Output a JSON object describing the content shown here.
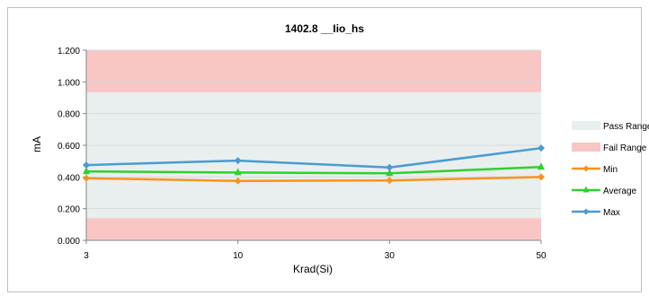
{
  "chart_data": {
    "type": "line",
    "title": "1402.8 __Iio_hs",
    "xlabel": "Krad(Si)",
    "ylabel": "mA",
    "categories": [
      "3",
      "10",
      "30",
      "50"
    ],
    "ylim": [
      0,
      1.2
    ],
    "yticks": [
      "0.000",
      "0.200",
      "0.400",
      "0.600",
      "0.800",
      "1.000",
      "1.200"
    ],
    "grid": true,
    "legend_position": "right",
    "bands": [
      {
        "name": "Pass Range",
        "from": 0.14,
        "to": 0.935,
        "color": "#e9eeee"
      },
      {
        "name": "Fail Range",
        "from": 0.935,
        "to": 1.2,
        "color": "#f9c6c6"
      },
      {
        "name": "Fail Range",
        "from": 0.0,
        "to": 0.14,
        "color": "#f9c6c6"
      }
    ],
    "series": [
      {
        "name": "Min",
        "values": [
          0.392,
          0.375,
          0.378,
          0.4
        ],
        "color": "#f7941d",
        "marker": "diamond"
      },
      {
        "name": "Average",
        "values": [
          0.435,
          0.428,
          0.423,
          0.463
        ],
        "color": "#2ed12e",
        "marker": "triangle"
      },
      {
        "name": "Max",
        "values": [
          0.475,
          0.503,
          0.46,
          0.582
        ],
        "color": "#4a9bd1",
        "marker": "diamond"
      }
    ],
    "legend": [
      {
        "label": "Pass Range",
        "kind": "band",
        "color": "#e9eeee"
      },
      {
        "label": "Fail Range",
        "kind": "band",
        "color": "#f9c6c6"
      },
      {
        "label": "Min",
        "kind": "line",
        "color": "#f7941d",
        "marker": "diamond"
      },
      {
        "label": "Average",
        "kind": "line",
        "color": "#2ed12e",
        "marker": "triangle"
      },
      {
        "label": "Max",
        "kind": "line",
        "color": "#4a9bd1",
        "marker": "diamond"
      }
    ]
  }
}
